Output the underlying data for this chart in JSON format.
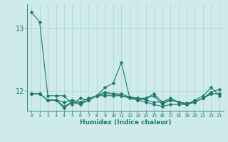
{
  "xlabel": "Humidex (Indice chaleur)",
  "ylabel": "",
  "bg_color": "#ceeaea",
  "line_color": "#1a7a6e",
  "grid_color": "#aed4d4",
  "xlim": [
    -0.5,
    23.5
  ],
  "ylim": [
    11.68,
    13.38
  ],
  "yticks": [
    12,
    13
  ],
  "xticks": [
    0,
    1,
    2,
    3,
    4,
    5,
    6,
    7,
    8,
    9,
    10,
    11,
    12,
    13,
    14,
    15,
    16,
    17,
    18,
    19,
    20,
    21,
    22,
    23
  ],
  "series": [
    [
      13.25,
      13.1,
      11.92,
      11.92,
      11.92,
      11.78,
      11.88,
      11.85,
      11.92,
      12.05,
      12.12,
      12.45,
      11.9,
      11.85,
      11.88,
      11.95,
      11.82,
      11.88,
      11.82,
      11.78,
      11.85,
      11.92,
      12.05,
      11.92
    ],
    [
      11.95,
      11.95,
      11.85,
      11.85,
      11.72,
      11.82,
      11.78,
      11.85,
      11.92,
      11.98,
      11.95,
      11.92,
      11.88,
      11.85,
      11.82,
      11.78,
      11.75,
      11.78,
      11.78,
      11.78,
      11.82,
      11.88,
      11.95,
      11.95
    ],
    [
      11.95,
      11.95,
      11.85,
      11.85,
      11.82,
      11.85,
      11.82,
      11.88,
      11.92,
      11.92,
      11.92,
      11.92,
      11.9,
      11.88,
      11.85,
      11.82,
      11.82,
      11.85,
      11.82,
      11.78,
      11.82,
      11.88,
      11.98,
      12.02
    ],
    [
      11.95,
      11.95,
      11.85,
      11.85,
      11.75,
      11.82,
      11.8,
      11.85,
      11.92,
      11.95,
      11.95,
      11.95,
      11.9,
      11.88,
      11.88,
      11.92,
      11.78,
      11.85,
      11.82,
      11.8,
      11.82,
      11.88,
      11.95,
      11.95
    ]
  ],
  "marker_size": 2.5,
  "linewidth": 0.8,
  "xlabel_fontsize": 6.5,
  "ytick_fontsize": 7,
  "xtick_fontsize": 4.8
}
